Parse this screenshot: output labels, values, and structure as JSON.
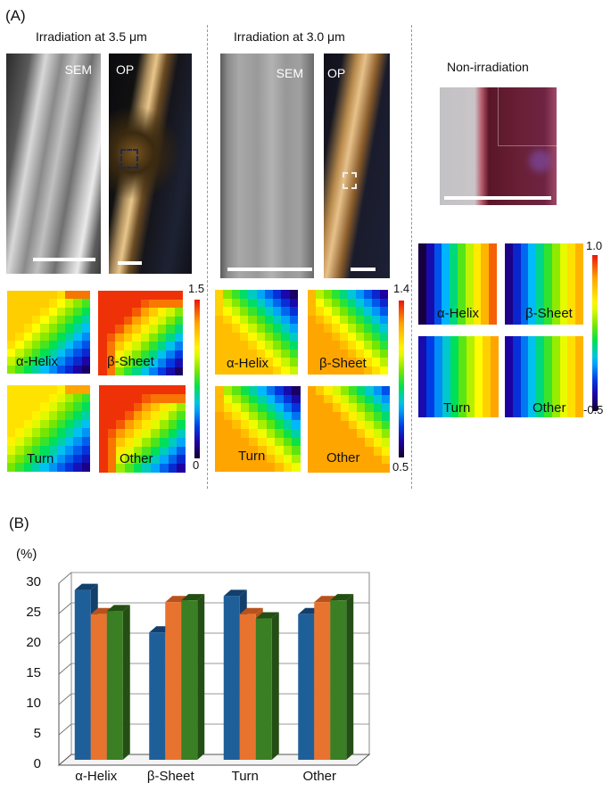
{
  "panel_a": {
    "label": "(A)",
    "groups": [
      {
        "title": "Irradiation at 3.5 μm",
        "images": [
          {
            "label": "SEM"
          },
          {
            "label": "OP"
          }
        ],
        "heatmaps": [
          {
            "label": "α-Helix",
            "pattern": "corner_br",
            "lo": 0.05,
            "hi": 0.9
          },
          {
            "label": "β-Sheet",
            "pattern": "corner_br_edge",
            "lo": 0.05,
            "hi": 0.97
          },
          {
            "label": "Turn",
            "pattern": "corner_br",
            "lo": 0.08,
            "hi": 0.85
          },
          {
            "label": "Other",
            "pattern": "corner_br_edge",
            "lo": 0.1,
            "hi": 0.97
          }
        ],
        "colorbar": {
          "max": "1.5",
          "min": "0"
        }
      },
      {
        "title": "Irradiation at 3.0 μm",
        "images": [
          {
            "label": "SEM"
          },
          {
            "label": "OP"
          }
        ],
        "heatmaps": [
          {
            "label": "α-Helix",
            "pattern": "corner_tr",
            "lo": 0.05,
            "hi": 0.8
          },
          {
            "label": "β-Sheet",
            "pattern": "corner_tr",
            "lo": 0.1,
            "hi": 0.85
          },
          {
            "label": "Turn",
            "pattern": "corner_tr",
            "lo": 0.05,
            "hi": 0.85
          },
          {
            "label": "Other",
            "pattern": "corner_tr_soft",
            "lo": 0.15,
            "hi": 0.85
          }
        ],
        "colorbar": {
          "max": "1.4",
          "min": "0.5"
        }
      },
      {
        "title": "Non-irradiation",
        "images": [],
        "heatmaps": [
          {
            "label": "α-Helix",
            "pattern": "horizontal",
            "lo": 0.02,
            "hi": 0.92
          },
          {
            "label": "β-Sheet",
            "pattern": "horizontal",
            "lo": 0.08,
            "hi": 0.82
          },
          {
            "label": "Turn",
            "pattern": "horizontal",
            "lo": 0.12,
            "hi": 0.85
          },
          {
            "label": "Other",
            "pattern": "horizontal",
            "lo": 0.1,
            "hi": 0.82
          }
        ],
        "colorbar": {
          "max": "1.0",
          "min": "-0.5"
        }
      }
    ]
  },
  "panel_b": {
    "label": "(B)",
    "unit": "(%)"
  },
  "chart_data": {
    "type": "bar",
    "title": "",
    "xlabel": "",
    "ylabel": "(%)",
    "ylim": [
      0,
      30
    ],
    "yticks": [
      "0",
      "5",
      "10",
      "15",
      "20",
      "25",
      "30"
    ],
    "grid": true,
    "style": "3d-clustered",
    "categories": [
      "α-Helix",
      "β-Sheet",
      "Turn",
      "Other"
    ],
    "series": [
      {
        "name": "series-blue",
        "color": "#1f5f99",
        "side": "#123f6c",
        "values": [
          28,
          21,
          27,
          24
        ]
      },
      {
        "name": "series-orange",
        "color": "#e8732f",
        "side": "#b8521c",
        "values": [
          24,
          26,
          24,
          26
        ]
      },
      {
        "name": "series-green",
        "color": "#3a7f23",
        "side": "#244f14",
        "values": [
          24.5,
          26.3,
          23.3,
          26.3
        ]
      }
    ],
    "legend": "none"
  }
}
